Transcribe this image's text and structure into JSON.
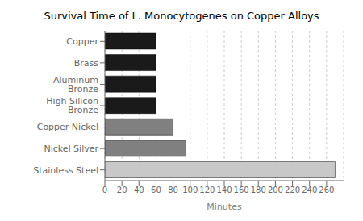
{
  "chart_data": {
    "type": "bar",
    "orientation": "horizontal",
    "title": "Survival Time of L. Monocytogenes on Copper Alloys",
    "xlabel": "Minutes",
    "categories": [
      "Stainless Steel",
      "Nickel Silver",
      "Copper Nickel",
      "High Silicon Bronze",
      "Aluminum Bronze",
      "Brass",
      "Copper"
    ],
    "values": [
      270,
      95,
      80,
      60,
      60,
      60,
      60
    ],
    "colors": [
      "#c8c8c8",
      "#808080",
      "#808080",
      "#1a1a1a",
      "#1a1a1a",
      "#1a1a1a",
      "#1a1a1a"
    ],
    "xlim": [
      0,
      280
    ],
    "xticks": [
      0,
      20,
      40,
      60,
      80,
      100,
      120,
      140,
      160,
      180,
      200,
      220,
      240,
      260
    ],
    "grid": true
  }
}
